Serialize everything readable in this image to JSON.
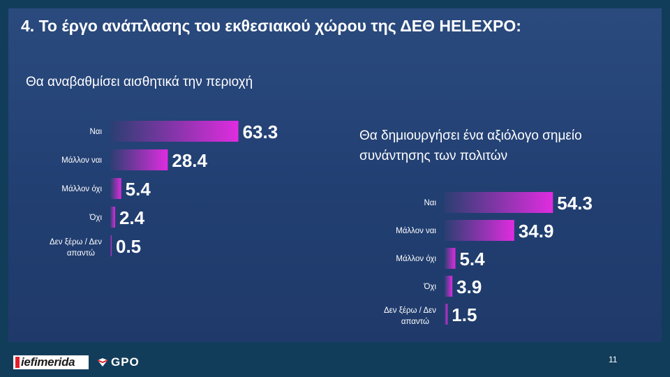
{
  "slide": {
    "title": "4. Το έργο ανάπλασης του εκθεσιακού χώρου της ΔΕΘ HELEXPO:",
    "page_number": "11"
  },
  "colors": {
    "background": "#123d5a",
    "panel": "#223f72",
    "bar_start": "#2b3f72",
    "bar_end": "#e02ce0"
  },
  "chart_data": [
    {
      "type": "bar",
      "orientation": "horizontal",
      "title": "Θα αναβαθμίσει αισθητικά την περιοχή",
      "categories": [
        "Ναι",
        "Μάλλον ναι",
        "Μάλλον όχι",
        "Όχι",
        "Δεν ξέρω / Δεν απαντώ"
      ],
      "values": [
        63.3,
        28.4,
        5.4,
        2.4,
        0.5
      ],
      "value_labels": [
        "63.3",
        "28.4",
        "5.4",
        "2.4",
        "0.5"
      ],
      "unit": "%",
      "xlim": [
        0,
        100
      ]
    },
    {
      "type": "bar",
      "orientation": "horizontal",
      "title": "Θα δημιουργήσει ένα αξιόλογο σημείο συνάντησης των πολιτών",
      "categories": [
        "Ναι",
        "Μάλλον ναι",
        "Μάλλον όχι",
        "Όχι",
        "Δεν ξέρω / Δεν απαντώ"
      ],
      "values": [
        54.3,
        34.9,
        5.4,
        3.9,
        1.5
      ],
      "value_labels": [
        "54.3",
        "34.9",
        "5.4",
        "3.9",
        "1.5"
      ],
      "unit": "%",
      "xlim": [
        0,
        100
      ]
    }
  ],
  "footer": {
    "logo_left": "iefimerida",
    "logo_right": "GPO"
  }
}
